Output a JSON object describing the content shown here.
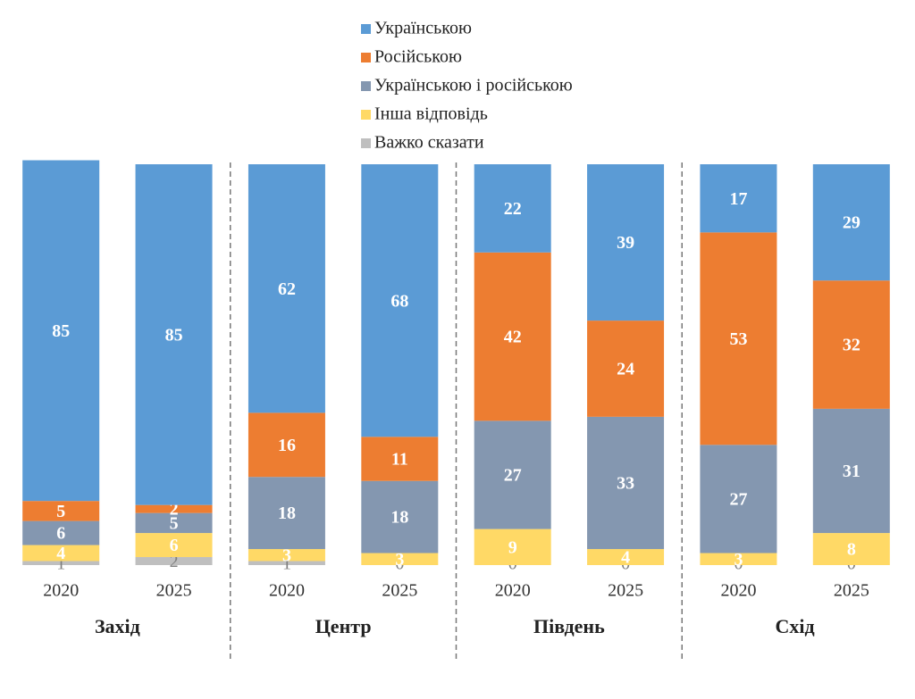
{
  "chart_data": {
    "type": "bar",
    "stacked": true,
    "groups": [
      "Захід",
      "Центр",
      "Південь",
      "Схід"
    ],
    "categories": [
      "2020",
      "2025",
      "2020",
      "2025",
      "2020",
      "2025",
      "2020",
      "2025"
    ],
    "series": [
      {
        "name": "Важко сказати",
        "color": "#bfbfbf",
        "values": [
          1,
          2,
          1,
          0,
          0,
          0,
          0,
          0
        ]
      },
      {
        "name": "Інша відповідь",
        "color": "#ffd966",
        "values": [
          4,
          6,
          3,
          3,
          9,
          4,
          3,
          8
        ]
      },
      {
        "name": "Українською і російською",
        "color": "#8497b0",
        "values": [
          6,
          5,
          18,
          18,
          27,
          33,
          27,
          31
        ]
      },
      {
        "name": "Російською",
        "color": "#ed7d31",
        "values": [
          5,
          2,
          16,
          11,
          42,
          24,
          53,
          32
        ]
      },
      {
        "name": "Українською",
        "color": "#5b9bd5",
        "values": [
          85,
          85,
          62,
          68,
          22,
          39,
          17,
          29
        ]
      }
    ],
    "ylim": [
      0,
      100
    ]
  }
}
